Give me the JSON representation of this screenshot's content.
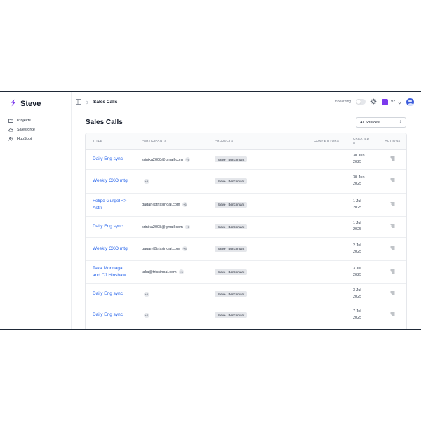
{
  "app": {
    "brand": "Steve"
  },
  "sidebar": {
    "items": [
      {
        "label": "Projects",
        "icon": "folder-icon"
      },
      {
        "label": "Salesforce",
        "icon": "cloud-icon"
      },
      {
        "label": "HubSpot",
        "icon": "users-icon"
      }
    ]
  },
  "topbar": {
    "breadcrumb": "Sales Calls",
    "onboarding_label": "Onboarding",
    "workspace_label": "v2"
  },
  "page": {
    "title": "Sales Calls",
    "source_filter": "All Sources"
  },
  "table": {
    "headers": {
      "title": "TITLE",
      "participants": "PARTICIPANTS",
      "projects": "PROJECTS",
      "competitors": "COMPETITORS",
      "created_at_1": "CREATED",
      "created_at_2": "AT",
      "actions": "ACTIONS"
    },
    "rows": [
      {
        "title": "Daily Eng sync",
        "email": "srinika2008@gmail.com",
        "more": "+5",
        "project": "Steve - Benchmark",
        "competitors": "",
        "date1": "30 Jun",
        "date2": "2025",
        "h": 28
      },
      {
        "title": "Weekly CXO mtg",
        "email": "",
        "more": "+3",
        "project": "Steve - Benchmark",
        "competitors": "",
        "date1": "30 Jun",
        "date2": "2025",
        "h": 34
      },
      {
        "title": "Felipe Gurgel <> Astri",
        "email": "gagan@trissinoai.com",
        "more": "+6",
        "project": "Steve - Benchmark",
        "competitors": "",
        "date1": "1 Jul",
        "date2": "2025",
        "h": 33
      },
      {
        "title": "Daily Eng sync",
        "email": "srinika2008@gmail.com",
        "more": "+5",
        "project": "Steve - Benchmark",
        "competitors": "",
        "date1": "1 Jul",
        "date2": "2025",
        "h": 30
      },
      {
        "title": "Weekly CXO mtg",
        "email": "gagan@trissinoai.com",
        "more": "+3",
        "project": "Steve - Benchmark",
        "competitors": "",
        "date1": "2 Jul",
        "date2": "2025",
        "h": 33
      },
      {
        "title": "Taka Morinaga and CJ Hinshaw",
        "email": "taka@trissinoai.com",
        "more": "+5",
        "project": "Steve - Benchmark",
        "competitors": "",
        "date1": "3 Jul",
        "date2": "2025",
        "h": 33
      },
      {
        "title": "Daily Eng sync",
        "email": "",
        "more": "+5",
        "project": "Steve - Benchmark",
        "competitors": "",
        "date1": "3 Jul",
        "date2": "2025",
        "h": 30
      },
      {
        "title": "Daily Eng sync",
        "email": "",
        "more": "+4",
        "project": "Steve - Benchmark",
        "competitors": "",
        "date1": "7 Jul",
        "date2": "2025",
        "h": 30
      }
    ]
  },
  "colors": {
    "accent": "#2563eb",
    "brand_purple": "#7c3aed",
    "avatar_blue": "#3b5bdb"
  }
}
